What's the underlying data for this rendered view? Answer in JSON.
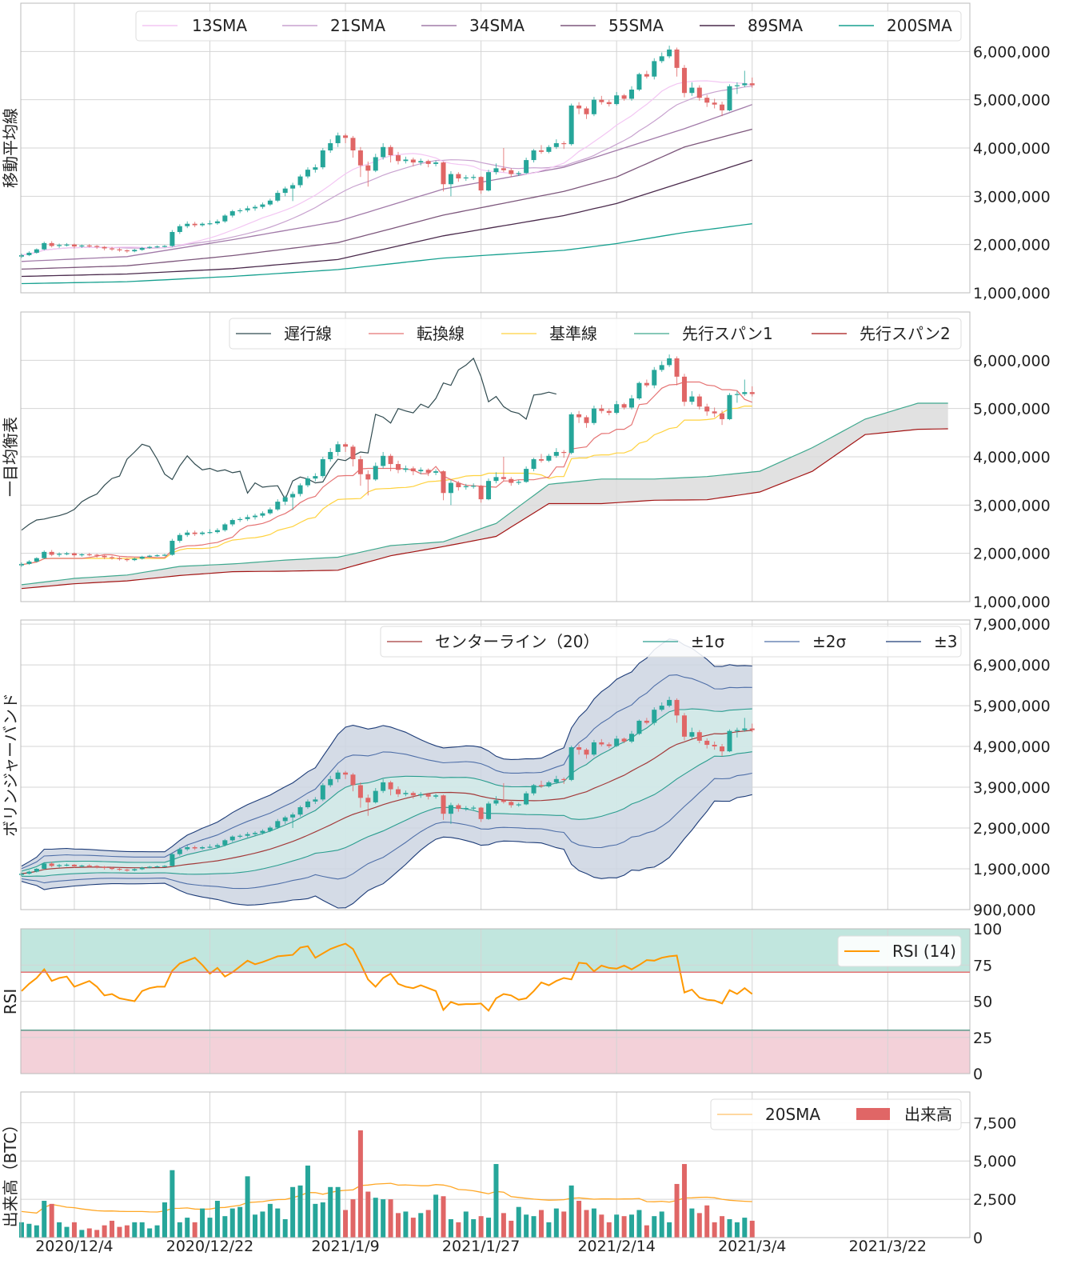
{
  "chart_data": [
    {
      "panel": "sma",
      "type": "candlestick",
      "ylabel": "移動平均線",
      "ylim": [
        1000000,
        7000000
      ],
      "yticks": [
        "1,000,000",
        "2,000,000",
        "3,000,000",
        "4,000,000",
        "5,000,000",
        "6,000,000"
      ],
      "legend": [
        "13SMA",
        "21SMA",
        "34SMA",
        "55SMA",
        "89SMA",
        "200SMA"
      ],
      "legend_position": "top-right",
      "colors": {
        "13SMA": "#f3c6f3",
        "21SMA": "#c8a2cf",
        "34SMA": "#a27ba9",
        "55SMA": "#7d577c",
        "89SMA": "#4a2a4c",
        "200SMA": "#16a08f"
      },
      "long_sma_samples": {
        "dates": [
          "2020/11/27",
          "2020/12/11",
          "2020/12/25",
          "2021/1/8",
          "2021/1/22",
          "2021/2/7",
          "2021/2/14",
          "2021/2/23",
          "2021/3/4"
        ],
        "34SMA": [
          1650000,
          1750000,
          2100000,
          2480000,
          3150000,
          3600000,
          3950000,
          4400000,
          4900000
        ],
        "55SMA": [
          1490000,
          1560000,
          1770000,
          2040000,
          2610000,
          3100000,
          3400000,
          4020000,
          4390000
        ],
        "89SMA": [
          1340000,
          1390000,
          1500000,
          1690000,
          2180000,
          2600000,
          2850000,
          3300000,
          3750000
        ],
        "200SMA": [
          1190000,
          1230000,
          1340000,
          1480000,
          1720000,
          1880000,
          2020000,
          2250000,
          2430000
        ]
      }
    },
    {
      "panel": "ichimoku",
      "type": "candlestick",
      "ylabel": "一目均衡表",
      "ylim": [
        1000000,
        7000000
      ],
      "yticks": [
        "1,000,000",
        "2,000,000",
        "3,000,000",
        "4,000,000",
        "5,000,000",
        "6,000,000"
      ],
      "legend": [
        "遅行線",
        "転換線",
        "基準線",
        "先行スパン1",
        "先行スパン2"
      ],
      "legend_position": "top-right",
      "colors": {
        "遅行線": "#2f4a4f",
        "転換線": "#e57373",
        "基準線": "#ffd23f",
        "先行スパン1": "#3fa88e",
        "先行スパン2": "#a31515",
        "cloud": "#d9d9d9"
      },
      "senkou_samples": {
        "dates": [
          "2020/11/27",
          "2020/12/4",
          "2020/12/11",
          "2020/12/18",
          "2020/12/25",
          "2021/1/1",
          "2021/1/8",
          "2021/1/15",
          "2021/1/22",
          "2021/1/29",
          "2021/2/5",
          "2021/2/12",
          "2021/2/19",
          "2021/2/26",
          "2021/3/5",
          "2021/3/12",
          "2021/3/19",
          "2021/3/26",
          "2021/3/30"
        ],
        "span1": [
          1350000,
          1480000,
          1550000,
          1730000,
          1780000,
          1860000,
          1920000,
          2160000,
          2240000,
          2620000,
          3430000,
          3540000,
          3540000,
          3590000,
          3700000,
          4190000,
          4780000,
          5110000,
          5110000
        ],
        "span2": [
          1270000,
          1370000,
          1430000,
          1540000,
          1620000,
          1630000,
          1650000,
          1950000,
          2140000,
          2350000,
          3030000,
          3030000,
          3100000,
          3110000,
          3270000,
          3700000,
          4460000,
          4570000,
          4580000
        ]
      }
    },
    {
      "panel": "bollinger",
      "type": "candlestick",
      "ylabel": "ボリンジャーバンド",
      "ylim": [
        900000,
        8000000
      ],
      "yticks": [
        "900,000",
        "1,900,000",
        "2,900,000",
        "3,900,000",
        "4,900,000",
        "5,900,000",
        "6,900,000",
        "7,900,000"
      ],
      "legend": [
        "センターライン（20）",
        "±1σ",
        "±2σ",
        "±3"
      ],
      "legend_position": "top-right",
      "colors": {
        "center": "#a33a3a",
        "s1": "#2a9d8f",
        "s2": "#4f6fa8",
        "s3": "#1d3c78",
        "fill_outer": "#cdd5e2",
        "fill_inner": "#d2ebe7"
      }
    },
    {
      "panel": "rsi",
      "type": "line",
      "ylabel": "RSI",
      "ylim": [
        0,
        100
      ],
      "yticks": [
        "0",
        "25",
        "50",
        "75",
        "100"
      ],
      "legend": [
        "RSI (14)"
      ],
      "legend_position": "top-right",
      "overbought": 70,
      "oversold": 30,
      "colors": {
        "line": "#ff9800",
        "overbought_fill": "#c1e6de",
        "oversold_fill": "#f3d1d9",
        "overbought_line": "#e57373",
        "oversold_line": "#5c9c8c"
      },
      "values": [
        57,
        62,
        66,
        72,
        64,
        66,
        67,
        60,
        62,
        64,
        60,
        54,
        55,
        52,
        51,
        50,
        57,
        59,
        60,
        60,
        71,
        76,
        78,
        80,
        75,
        69,
        73,
        67,
        70,
        74,
        78,
        75.5,
        77,
        79,
        81,
        81.5,
        82,
        87,
        88,
        80,
        83,
        86,
        88,
        89.7,
        86,
        76,
        65,
        60,
        66,
        69,
        62,
        60,
        59,
        61,
        59,
        57,
        44,
        49.5,
        47.6,
        48,
        48,
        48.4,
        43.5,
        52,
        55,
        54,
        51,
        52,
        57,
        63,
        61,
        64,
        66,
        65,
        76.6,
        76,
        70.6,
        74.6,
        73,
        72.5,
        74.6,
        72,
        75,
        78.4,
        78,
        80,
        81,
        81.5,
        56,
        58,
        52.5,
        51,
        50.5,
        48.4,
        57.6,
        55,
        59,
        55
      ]
    },
    {
      "panel": "volume",
      "type": "bar",
      "ylabel": "出来高（BTC）",
      "ylim": [
        0,
        9500
      ],
      "yticks": [
        "0",
        "2,500",
        "5,000",
        "7,500"
      ],
      "legend": [
        "20SMA",
        "出来高"
      ],
      "legend_position": "top-right",
      "colors": {
        "sma": "#ffa726",
        "up": "#26a69a",
        "down": "#e06666"
      },
      "values": [
        1000,
        900,
        800,
        2400,
        2200,
        1000,
        700,
        1000,
        500,
        600,
        500,
        800,
        1100,
        700,
        800,
        1000,
        1000,
        600,
        800,
        2300,
        4400,
        1000,
        1300,
        1000,
        1900,
        1300,
        2400,
        1400,
        1900,
        2000,
        4000,
        1500,
        1700,
        2200,
        1900,
        1200,
        3300,
        3400,
        4700,
        2200,
        2300,
        3300,
        3300,
        1800,
        2500,
        7000,
        3000,
        2600,
        2500,
        2500,
        1600,
        1700,
        1300,
        1600,
        1800,
        2800,
        2700,
        1200,
        1000,
        1700,
        1200,
        1400,
        1300,
        4800,
        1600,
        1100,
        2000,
        1500,
        1400,
        1800,
        1000,
        1900,
        1700,
        3400,
        2400,
        1800,
        1900,
        1500,
        1000,
        1500,
        1400,
        1500,
        1800,
        800,
        1400,
        1700,
        1000,
        3500,
        4800,
        1900,
        1600,
        2100,
        1000,
        1400,
        1200,
        1000,
        1300,
        1100
      ]
    }
  ],
  "price": {
    "x_start": "2020/11/27",
    "candle_colors": {
      "up": "#26a69a",
      "down": "#e06666"
    },
    "ohlc": [
      [
        1750000,
        1810000,
        1720000,
        1780000
      ],
      [
        1780000,
        1860000,
        1760000,
        1830000
      ],
      [
        1830000,
        1920000,
        1810000,
        1900000
      ],
      [
        1900000,
        2060000,
        1880000,
        2030000
      ],
      [
        2030000,
        2070000,
        1940000,
        1970000
      ],
      [
        1970000,
        2020000,
        1930000,
        1990000
      ],
      [
        1990000,
        2030000,
        1960000,
        2000000
      ],
      [
        2000000,
        2020000,
        1920000,
        1960000
      ],
      [
        1960000,
        2000000,
        1930000,
        1980000
      ],
      [
        1980000,
        2010000,
        1940000,
        1970000
      ],
      [
        1970000,
        1990000,
        1910000,
        1950000
      ],
      [
        1950000,
        1970000,
        1880000,
        1920000
      ],
      [
        1920000,
        1950000,
        1870000,
        1900000
      ],
      [
        1900000,
        1930000,
        1850000,
        1880000
      ],
      [
        1880000,
        1900000,
        1830000,
        1860000
      ],
      [
        1860000,
        1910000,
        1840000,
        1890000
      ],
      [
        1890000,
        1950000,
        1870000,
        1930000
      ],
      [
        1930000,
        1970000,
        1910000,
        1950000
      ],
      [
        1950000,
        1980000,
        1930000,
        1960000
      ],
      [
        1960000,
        1990000,
        1940000,
        1970000
      ],
      [
        1970000,
        2300000,
        1950000,
        2260000
      ],
      [
        2260000,
        2420000,
        2220000,
        2380000
      ],
      [
        2380000,
        2480000,
        2340000,
        2430000
      ],
      [
        2430000,
        2470000,
        2360000,
        2400000
      ],
      [
        2400000,
        2460000,
        2370000,
        2430000
      ],
      [
        2440000,
        2500000,
        2400000,
        2440000
      ],
      [
        2440000,
        2520000,
        2410000,
        2480000
      ],
      [
        2480000,
        2630000,
        2450000,
        2600000
      ],
      [
        2600000,
        2720000,
        2560000,
        2690000
      ],
      [
        2690000,
        2750000,
        2650000,
        2710000
      ],
      [
        2710000,
        2800000,
        2670000,
        2750000
      ],
      [
        2750000,
        2820000,
        2700000,
        2780000
      ],
      [
        2780000,
        2870000,
        2740000,
        2830000
      ],
      [
        2830000,
        2950000,
        2800000,
        2910000
      ],
      [
        2910000,
        3120000,
        2880000,
        3070000
      ],
      [
        3070000,
        3200000,
        3000000,
        3160000
      ],
      [
        3160000,
        3280000,
        2900000,
        3230000
      ],
      [
        3230000,
        3450000,
        3180000,
        3410000
      ],
      [
        3410000,
        3600000,
        3370000,
        3550000
      ],
      [
        3550000,
        3660000,
        3490000,
        3600000
      ],
      [
        3600000,
        4000000,
        3560000,
        3950000
      ],
      [
        3950000,
        4180000,
        3900000,
        4100000
      ],
      [
        4100000,
        4320000,
        4020000,
        4260000
      ],
      [
        4260000,
        4300000,
        4100000,
        4210000
      ],
      [
        4210000,
        4250000,
        3800000,
        3950000
      ],
      [
        3950000,
        4020000,
        3400000,
        3640000
      ],
      [
        3640000,
        3720000,
        3200000,
        3530000
      ],
      [
        3530000,
        3880000,
        3500000,
        3810000
      ],
      [
        3810000,
        4100000,
        3760000,
        4020000
      ],
      [
        4020000,
        4060000,
        3700000,
        3850000
      ],
      [
        3850000,
        3920000,
        3660000,
        3730000
      ],
      [
        3730000,
        3820000,
        3680000,
        3760000
      ],
      [
        3760000,
        3800000,
        3620000,
        3700000
      ],
      [
        3700000,
        3780000,
        3640000,
        3730000
      ],
      [
        3730000,
        3760000,
        3600000,
        3670000
      ],
      [
        3670000,
        3740000,
        3620000,
        3700000
      ],
      [
        3700000,
        3720000,
        3100000,
        3250000
      ],
      [
        3250000,
        3520000,
        3000000,
        3460000
      ],
      [
        3460000,
        3500000,
        3300000,
        3370000
      ],
      [
        3370000,
        3440000,
        3320000,
        3390000
      ],
      [
        3390000,
        3450000,
        3340000,
        3400000
      ],
      [
        3400000,
        3420000,
        3050000,
        3120000
      ],
      [
        3120000,
        3550000,
        3100000,
        3500000
      ],
      [
        3500000,
        3680000,
        3450000,
        3580000
      ],
      [
        3580000,
        4000000,
        3500000,
        3540000
      ],
      [
        3540000,
        3580000,
        3400000,
        3460000
      ],
      [
        3460000,
        3520000,
        3420000,
        3480000
      ],
      [
        3480000,
        3800000,
        3460000,
        3750000
      ],
      [
        3750000,
        3980000,
        3700000,
        3950000
      ],
      [
        3950000,
        4060000,
        3880000,
        3920000
      ],
      [
        3920000,
        4060000,
        3890000,
        4020000
      ],
      [
        4020000,
        4180000,
        3980000,
        4100000
      ],
      [
        4100000,
        4140000,
        3980000,
        4080000
      ],
      [
        4080000,
        4920000,
        4050000,
        4880000
      ],
      [
        4880000,
        4950000,
        4700000,
        4820000
      ],
      [
        4820000,
        4860000,
        4600000,
        4700000
      ],
      [
        4700000,
        5060000,
        4660000,
        5000000
      ],
      [
        5000000,
        5080000,
        4900000,
        4950000
      ],
      [
        4950000,
        5000000,
        4860000,
        4910000
      ],
      [
        4910000,
        5160000,
        4880000,
        5090000
      ],
      [
        5090000,
        5120000,
        4980000,
        5020000
      ],
      [
        5020000,
        5280000,
        4980000,
        5210000
      ],
      [
        5210000,
        5560000,
        5180000,
        5530000
      ],
      [
        5530000,
        5600000,
        5440000,
        5480000
      ],
      [
        5480000,
        5860000,
        5420000,
        5800000
      ],
      [
        5800000,
        5980000,
        5760000,
        5900000
      ],
      [
        5900000,
        6120000,
        5860000,
        6040000
      ],
      [
        6040000,
        6080000,
        5480000,
        5660000
      ],
      [
        5660000,
        5720000,
        5050000,
        5140000
      ],
      [
        5140000,
        5360000,
        5080000,
        5250000
      ],
      [
        5250000,
        5300000,
        4980000,
        5040000
      ],
      [
        5040000,
        5100000,
        4850000,
        4940000
      ],
      [
        4940000,
        5020000,
        4820000,
        4900000
      ],
      [
        4900000,
        4960000,
        4660000,
        4780000
      ],
      [
        4780000,
        5320000,
        4760000,
        5280000
      ],
      [
        5280000,
        5360000,
        5120000,
        5300000
      ],
      [
        5300000,
        5600000,
        5260000,
        5340000
      ],
      [
        5340000,
        5460000,
        5250000,
        5300000
      ]
    ]
  },
  "x_axis": {
    "ticks": [
      "2020/12/4",
      "2020/12/22",
      "2021/1/9",
      "2021/1/27",
      "2021/2/14",
      "2021/3/4",
      "2021/3/22"
    ]
  }
}
